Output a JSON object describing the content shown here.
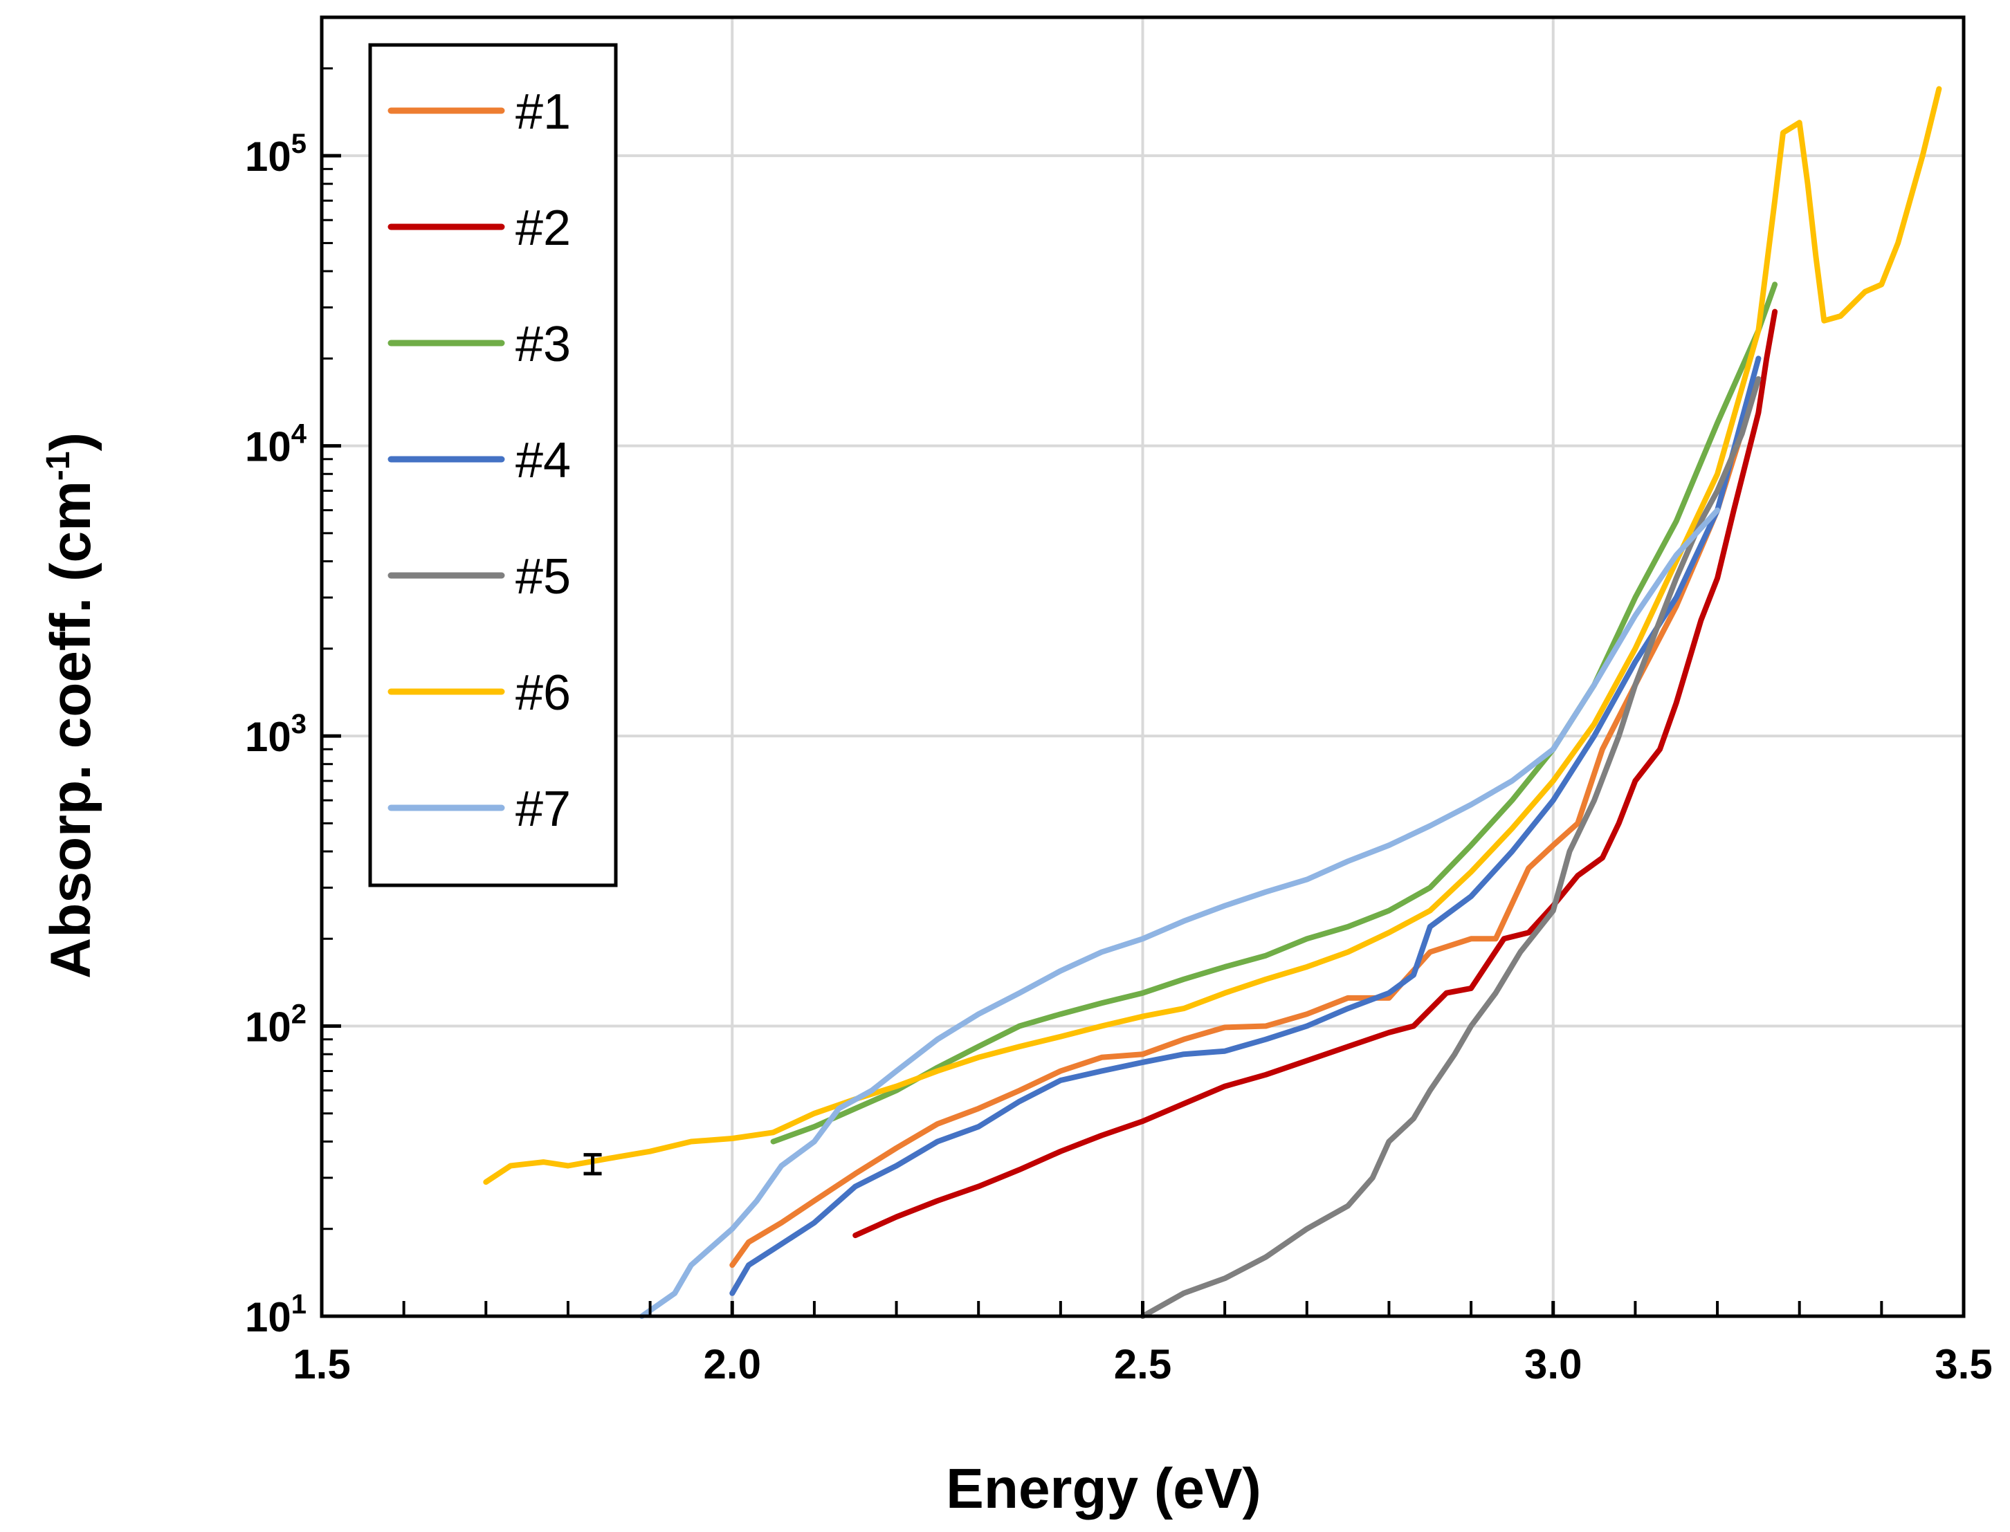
{
  "chart_data": {
    "type": "line",
    "title": "",
    "xlabel": "Energy (eV)",
    "ylabel": "Absorp. coeff. (cm",
    "ylabel_sup": "-1",
    "ylabel_close": ")",
    "xlim": [
      1.5,
      3.5
    ],
    "ylim": [
      10,
      300000
    ],
    "yscale": "log",
    "grid": true,
    "legend_position": "top-left",
    "x_ticks": [
      {
        "value": 1.5,
        "label": "1.5"
      },
      {
        "value": 2.0,
        "label": "2.0"
      },
      {
        "value": 2.5,
        "label": "2.5"
      },
      {
        "value": 3.0,
        "label": "3.0"
      },
      {
        "value": 3.5,
        "label": "3.5"
      }
    ],
    "y_ticks": [
      {
        "value": 10,
        "base": "10",
        "exp": "1"
      },
      {
        "value": 100,
        "base": "10",
        "exp": "2"
      },
      {
        "value": 1000,
        "base": "10",
        "exp": "3"
      },
      {
        "value": 10000,
        "base": "10",
        "exp": "4"
      },
      {
        "value": 100000,
        "base": "10",
        "exp": "5"
      }
    ],
    "series": [
      {
        "name": "#1",
        "color": "#ED7D31",
        "points": [
          [
            2.0,
            15
          ],
          [
            2.02,
            18
          ],
          [
            2.06,
            21
          ],
          [
            2.1,
            25
          ],
          [
            2.15,
            31
          ],
          [
            2.2,
            38
          ],
          [
            2.25,
            46
          ],
          [
            2.3,
            52
          ],
          [
            2.35,
            60
          ],
          [
            2.4,
            70
          ],
          [
            2.45,
            78
          ],
          [
            2.5,
            80
          ],
          [
            2.55,
            90
          ],
          [
            2.6,
            99
          ],
          [
            2.65,
            100
          ],
          [
            2.7,
            110
          ],
          [
            2.75,
            125
          ],
          [
            2.8,
            125
          ],
          [
            2.85,
            180
          ],
          [
            2.9,
            200
          ],
          [
            2.93,
            200
          ],
          [
            2.97,
            350
          ],
          [
            3.0,
            420
          ],
          [
            3.03,
            500
          ],
          [
            3.06,
            900
          ],
          [
            3.1,
            1500
          ],
          [
            3.15,
            2800
          ],
          [
            3.2,
            6000
          ],
          [
            3.25,
            17000
          ]
        ]
      },
      {
        "name": "#2",
        "color": "#C00000",
        "points": [
          [
            2.15,
            19
          ],
          [
            2.2,
            22
          ],
          [
            2.25,
            25
          ],
          [
            2.3,
            28
          ],
          [
            2.35,
            32
          ],
          [
            2.4,
            37
          ],
          [
            2.45,
            42
          ],
          [
            2.5,
            47
          ],
          [
            2.55,
            54
          ],
          [
            2.6,
            62
          ],
          [
            2.65,
            68
          ],
          [
            2.7,
            76
          ],
          [
            2.75,
            85
          ],
          [
            2.8,
            95
          ],
          [
            2.83,
            100
          ],
          [
            2.87,
            130
          ],
          [
            2.9,
            135
          ],
          [
            2.94,
            200
          ],
          [
            2.97,
            210
          ],
          [
            3.0,
            260
          ],
          [
            3.03,
            330
          ],
          [
            3.06,
            380
          ],
          [
            3.08,
            500
          ],
          [
            3.1,
            700
          ],
          [
            3.13,
            900
          ],
          [
            3.15,
            1300
          ],
          [
            3.18,
            2500
          ],
          [
            3.2,
            3500
          ],
          [
            3.22,
            6000
          ],
          [
            3.25,
            13000
          ],
          [
            3.26,
            20000
          ],
          [
            3.27,
            29000
          ]
        ]
      },
      {
        "name": "#3",
        "color": "#70AD47",
        "points": [
          [
            2.05,
            40
          ],
          [
            2.1,
            45
          ],
          [
            2.15,
            52
          ],
          [
            2.2,
            60
          ],
          [
            2.25,
            72
          ],
          [
            2.3,
            85
          ],
          [
            2.35,
            100
          ],
          [
            2.4,
            110
          ],
          [
            2.45,
            120
          ],
          [
            2.5,
            130
          ],
          [
            2.55,
            145
          ],
          [
            2.6,
            160
          ],
          [
            2.65,
            175
          ],
          [
            2.7,
            200
          ],
          [
            2.75,
            220
          ],
          [
            2.8,
            250
          ],
          [
            2.85,
            300
          ],
          [
            2.9,
            420
          ],
          [
            2.95,
            600
          ],
          [
            3.0,
            900
          ],
          [
            3.05,
            1500
          ],
          [
            3.1,
            3000
          ],
          [
            3.15,
            5500
          ],
          [
            3.2,
            12000
          ],
          [
            3.25,
            25000
          ],
          [
            3.27,
            36000
          ]
        ]
      },
      {
        "name": "#4",
        "color": "#4472C4",
        "points": [
          [
            2.0,
            12
          ],
          [
            2.02,
            15
          ],
          [
            2.05,
            17
          ],
          [
            2.1,
            21
          ],
          [
            2.15,
            28
          ],
          [
            2.2,
            33
          ],
          [
            2.25,
            40
          ],
          [
            2.3,
            45
          ],
          [
            2.35,
            55
          ],
          [
            2.4,
            65
          ],
          [
            2.45,
            70
          ],
          [
            2.5,
            75
          ],
          [
            2.55,
            80
          ],
          [
            2.6,
            82
          ],
          [
            2.65,
            90
          ],
          [
            2.7,
            100
          ],
          [
            2.75,
            115
          ],
          [
            2.8,
            130
          ],
          [
            2.83,
            150
          ],
          [
            2.85,
            220
          ],
          [
            2.9,
            280
          ],
          [
            2.95,
            400
          ],
          [
            3.0,
            600
          ],
          [
            3.05,
            1000
          ],
          [
            3.1,
            1800
          ],
          [
            3.15,
            3000
          ],
          [
            3.2,
            6000
          ],
          [
            3.25,
            20000
          ]
        ]
      },
      {
        "name": "#5",
        "color": "#7F7F7F",
        "points": [
          [
            2.5,
            10
          ],
          [
            2.55,
            12
          ],
          [
            2.6,
            13.5
          ],
          [
            2.65,
            16
          ],
          [
            2.7,
            20
          ],
          [
            2.75,
            24
          ],
          [
            2.78,
            30
          ],
          [
            2.8,
            40
          ],
          [
            2.83,
            48
          ],
          [
            2.85,
            60
          ],
          [
            2.88,
            80
          ],
          [
            2.9,
            100
          ],
          [
            2.93,
            130
          ],
          [
            2.96,
            180
          ],
          [
            3.0,
            250
          ],
          [
            3.02,
            400
          ],
          [
            3.05,
            600
          ],
          [
            3.08,
            1000
          ],
          [
            3.1,
            1500
          ],
          [
            3.13,
            2500
          ],
          [
            3.15,
            3500
          ],
          [
            3.18,
            5500
          ],
          [
            3.2,
            7000
          ],
          [
            3.23,
            11000
          ],
          [
            3.25,
            17000
          ]
        ]
      },
      {
        "name": "#6",
        "color": "#FFC000",
        "points": [
          [
            1.7,
            29
          ],
          [
            1.73,
            33
          ],
          [
            1.77,
            34
          ],
          [
            1.8,
            33
          ],
          [
            1.85,
            35
          ],
          [
            1.9,
            37
          ],
          [
            1.95,
            40
          ],
          [
            2.0,
            41
          ],
          [
            2.05,
            43
          ],
          [
            2.1,
            50
          ],
          [
            2.15,
            56
          ],
          [
            2.2,
            62
          ],
          [
            2.25,
            70
          ],
          [
            2.3,
            78
          ],
          [
            2.35,
            85
          ],
          [
            2.4,
            92
          ],
          [
            2.45,
            100
          ],
          [
            2.5,
            108
          ],
          [
            2.55,
            115
          ],
          [
            2.6,
            130
          ],
          [
            2.65,
            145
          ],
          [
            2.7,
            160
          ],
          [
            2.75,
            180
          ],
          [
            2.8,
            210
          ],
          [
            2.85,
            250
          ],
          [
            2.9,
            340
          ],
          [
            2.95,
            480
          ],
          [
            3.0,
            700
          ],
          [
            3.05,
            1100
          ],
          [
            3.1,
            2000
          ],
          [
            3.15,
            4000
          ],
          [
            3.2,
            8000
          ],
          [
            3.25,
            25000
          ],
          [
            3.27,
            70000
          ],
          [
            3.28,
            120000
          ],
          [
            3.3,
            130000
          ],
          [
            3.31,
            80000
          ],
          [
            3.32,
            45000
          ],
          [
            3.33,
            27000
          ],
          [
            3.35,
            28000
          ],
          [
            3.38,
            34000
          ],
          [
            3.4,
            36000
          ],
          [
            3.42,
            50000
          ],
          [
            3.45,
            100000
          ],
          [
            3.47,
            170000
          ]
        ]
      },
      {
        "name": "#7",
        "color": "#8FB4E3",
        "points": [
          [
            1.89,
            10
          ],
          [
            1.93,
            12
          ],
          [
            1.95,
            15
          ],
          [
            2.0,
            20
          ],
          [
            2.03,
            25
          ],
          [
            2.06,
            33
          ],
          [
            2.1,
            40
          ],
          [
            2.13,
            52
          ],
          [
            2.17,
            60
          ],
          [
            2.2,
            70
          ],
          [
            2.25,
            90
          ],
          [
            2.3,
            110
          ],
          [
            2.35,
            130
          ],
          [
            2.4,
            155
          ],
          [
            2.45,
            180
          ],
          [
            2.5,
            200
          ],
          [
            2.55,
            230
          ],
          [
            2.6,
            260
          ],
          [
            2.65,
            290
          ],
          [
            2.7,
            320
          ],
          [
            2.75,
            370
          ],
          [
            2.8,
            420
          ],
          [
            2.85,
            490
          ],
          [
            2.9,
            580
          ],
          [
            2.95,
            700
          ],
          [
            3.0,
            900
          ],
          [
            3.05,
            1500
          ],
          [
            3.1,
            2600
          ],
          [
            3.15,
            4200
          ],
          [
            3.2,
            6000
          ]
        ]
      }
    ],
    "error_bar": {
      "x": 1.83,
      "y": 33,
      "low": 31,
      "high": 36
    }
  }
}
